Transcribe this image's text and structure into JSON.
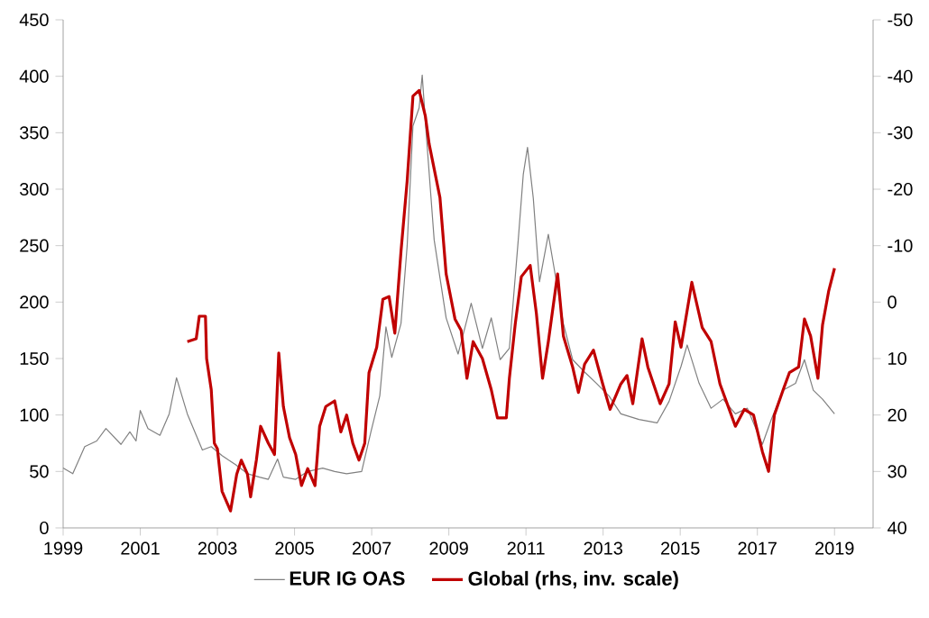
{
  "chart_data": {
    "type": "line",
    "x": [
      1999.0,
      1999.25,
      1999.56,
      1999.87,
      2000.11,
      2000.5,
      2000.73,
      2000.89,
      2001.0,
      2001.2,
      2001.51,
      2001.75,
      2001.94,
      2002.22,
      2002.61,
      2002.84,
      2003.12,
      2003.47,
      2003.78,
      2004.09,
      2004.32,
      2004.56,
      2004.71,
      2005.03,
      2005.34,
      2005.73,
      2006.04,
      2006.35,
      2006.74,
      2006.98,
      2007.21,
      2007.37,
      2007.52,
      2007.76,
      2007.92,
      2008.07,
      2008.23,
      2008.31,
      2008.41,
      2008.62,
      2008.93,
      2009.24,
      2009.58,
      2009.87,
      2010.1,
      2010.33,
      2010.57,
      2010.8,
      2010.93,
      2011.04,
      2011.19,
      2011.35,
      2011.58,
      2011.74,
      2011.97,
      2012.21,
      2012.52,
      2012.83,
      2013.15,
      2013.46,
      2013.93,
      2014.4,
      2014.71,
      2015.02,
      2015.18,
      2015.49,
      2015.8,
      2016.11,
      2016.43,
      2016.74,
      2017.13,
      2017.36,
      2017.67,
      2017.99,
      2018.22,
      2018.45,
      2018.69,
      2019.0
    ],
    "series": [
      {
        "name": "EUR IG OAS",
        "color": "#808080",
        "values": [
          53,
          48,
          72,
          77,
          88,
          74,
          85,
          77,
          104,
          88,
          82,
          101,
          133,
          101,
          69,
          72,
          64,
          56,
          48,
          45,
          43,
          61,
          45,
          43,
          50,
          53,
          50,
          48,
          50,
          85,
          117,
          178,
          151,
          181,
          250,
          356,
          372,
          401,
          351,
          255,
          186,
          154,
          199,
          159,
          186,
          149,
          159,
          255,
          313,
          337,
          292,
          218,
          260,
          228,
          181,
          149,
          138,
          128,
          117,
          101,
          96,
          93,
          112,
          143,
          162,
          128,
          106,
          114,
          101,
          106,
          74,
          96,
          122,
          128,
          149,
          122,
          114,
          101
        ]
      },
      {
        "name": "Global (rhs, inv. scale)",
        "color": "#c00000",
        "axis": "y2",
        "x": [
          2002.22,
          2002.45,
          2002.53,
          2002.69,
          2002.72,
          2002.84,
          2002.92,
          2003.0,
          2003.12,
          2003.34,
          2003.5,
          2003.62,
          2003.78,
          2003.86,
          2004.01,
          2004.12,
          2004.32,
          2004.48,
          2004.59,
          2004.71,
          2004.87,
          2005.03,
          2005.18,
          2005.34,
          2005.53,
          2005.65,
          2005.81,
          2006.04,
          2006.2,
          2006.35,
          2006.51,
          2006.67,
          2006.82,
          2006.93,
          2007.13,
          2007.29,
          2007.45,
          2007.6,
          2007.76,
          2007.92,
          2008.07,
          2008.23,
          2008.39,
          2008.49,
          2008.77,
          2008.93,
          2009.16,
          2009.32,
          2009.47,
          2009.63,
          2009.87,
          2010.1,
          2010.26,
          2010.49,
          2010.57,
          2010.72,
          2010.88,
          2011.11,
          2011.27,
          2011.43,
          2011.58,
          2011.82,
          2011.97,
          2012.21,
          2012.36,
          2012.52,
          2012.75,
          2012.99,
          2013.18,
          2013.46,
          2013.62,
          2013.77,
          2014.01,
          2014.16,
          2014.48,
          2014.71,
          2014.87,
          2015.02,
          2015.3,
          2015.57,
          2015.8,
          2016.03,
          2016.27,
          2016.43,
          2016.66,
          2016.9,
          2017.13,
          2017.29,
          2017.44,
          2017.67,
          2017.83,
          2018.07,
          2018.22,
          2018.38,
          2018.57,
          2018.69,
          2018.85,
          2019.0
        ],
        "values": [
          7,
          6.5,
          2.5,
          2.5,
          10,
          15.5,
          25,
          26,
          33.5,
          37,
          30.5,
          28,
          30.5,
          34.5,
          28,
          22,
          25,
          27,
          9,
          18.5,
          24,
          27,
          32.5,
          29.5,
          32.5,
          22,
          18.5,
          17.5,
          23,
          20,
          25,
          28,
          25,
          12.5,
          8,
          -0.5,
          -1,
          5.5,
          -9,
          -21.5,
          -36.5,
          -37.5,
          -33,
          -28,
          -18.5,
          -5,
          3,
          5,
          13.5,
          7,
          10,
          15.5,
          20.5,
          20.5,
          13.5,
          4,
          -4.5,
          -6.5,
          2,
          13.5,
          7,
          -5,
          6,
          11.5,
          16,
          11,
          8.5,
          14.5,
          19,
          14.5,
          13,
          18,
          6.5,
          11.5,
          18,
          14.5,
          3.5,
          8,
          -3.5,
          4.5,
          7,
          14.5,
          19,
          22,
          19,
          20,
          26.5,
          30,
          20,
          15.5,
          12.5,
          11.5,
          3,
          6,
          13.5,
          4,
          -2,
          -6
        ]
      }
    ],
    "xlim": [
      1999,
      2020
    ],
    "xticks": [
      1999,
      2001,
      2003,
      2005,
      2007,
      2009,
      2011,
      2013,
      2015,
      2017,
      2019
    ],
    "ylim": [
      0,
      450
    ],
    "yticks": [
      0,
      50,
      100,
      150,
      200,
      250,
      300,
      350,
      400,
      450
    ],
    "y2lim": [
      40,
      -50
    ],
    "y2ticks": [
      -50,
      -40,
      -30,
      -20,
      -10,
      0,
      10,
      20,
      30,
      40
    ],
    "grid": false,
    "legend": "bottom",
    "marker": "none",
    "line_style": "solid"
  }
}
